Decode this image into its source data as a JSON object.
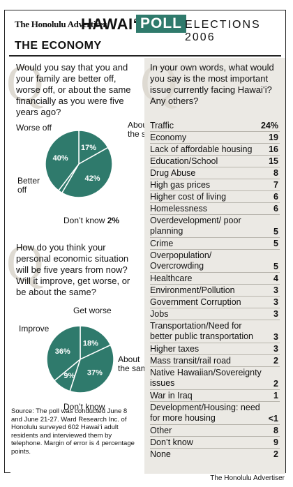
{
  "header": {
    "paper": "The Honolulu Advertiser",
    "hawaii": "HAWAIʻI",
    "poll": "POLL",
    "elections": "ELECTIONS 2006"
  },
  "section_title": "THE ECONOMY",
  "colors": {
    "pie_fill": "#2f7a6c",
    "pie_line": "#ffffff",
    "right_bg": "#ebe9e4",
    "quote_mark": "#dedad2"
  },
  "quote_mark": "Q",
  "source_note": "Source: The poll was conducted June 8 and June 21-27. Ward Research Inc. of Honolulu surveyed 602 Hawaiʻi adult residents and interviewed them by telephone. Margin of error is 4 percentage points.",
  "credit": "The Honolulu Advertiser",
  "chart_data": [
    {
      "type": "pie",
      "question": "Would you say that you and your family are better off, worse off, or about the same financially as you were five years ago?",
      "categories": [
        "Worse off",
        "About the same",
        "Don’t know",
        "Better off"
      ],
      "values": [
        17,
        42,
        2,
        40
      ],
      "value_labels": [
        "17%",
        "42%",
        "2%",
        "40%"
      ]
    },
    {
      "type": "pie",
      "question": "How do you think your personal economic situation will be five years from now? Will it improve, get worse, or be about the same?",
      "categories": [
        "Get worse",
        "About the same",
        "Don’t know",
        "Improve"
      ],
      "values": [
        18,
        37,
        9,
        36
      ],
      "value_labels": [
        "18%",
        "37%",
        "9%",
        "36%"
      ]
    },
    {
      "type": "table",
      "question": "In your own words, what would you say is the most important issue currently facing Hawaiʻi? Any others?",
      "rows": [
        {
          "label": "Traffic",
          "value": "24%"
        },
        {
          "label": "Economy",
          "value": "19"
        },
        {
          "label": "Lack of affordable housing",
          "value": "16"
        },
        {
          "label": "Education/School",
          "value": "15"
        },
        {
          "label": "Drug Abuse",
          "value": "8"
        },
        {
          "label": "High gas prices",
          "value": "7"
        },
        {
          "label": "Higher cost of living",
          "value": "6"
        },
        {
          "label": "Homelessness",
          "value": "6"
        },
        {
          "label": "Overdevelopment/ poor planning",
          "value": "5"
        },
        {
          "label": "Crime",
          "value": "5"
        },
        {
          "label": "Overpopulation/ Overcrowding",
          "value": "5"
        },
        {
          "label": "Healthcare",
          "value": "4"
        },
        {
          "label": "Environment/Pollution",
          "value": "3"
        },
        {
          "label": "Government Corruption",
          "value": "3"
        },
        {
          "label": "Jobs",
          "value": "3"
        },
        {
          "label": "Transportation/Need for better public transportation",
          "value": "3"
        },
        {
          "label": "Higher taxes",
          "value": "3"
        },
        {
          "label": "Mass transit/rail road",
          "value": "2"
        },
        {
          "label": "Native Hawaiian/Sovereignty issues",
          "value": "2"
        },
        {
          "label": "War in Iraq",
          "value": "1"
        },
        {
          "label": "Development/Housing: need for more housing",
          "value": "<1"
        },
        {
          "label": "Other",
          "value": "8"
        },
        {
          "label": "Don’t know",
          "value": "9"
        },
        {
          "label": "None",
          "value": "2"
        }
      ]
    }
  ]
}
